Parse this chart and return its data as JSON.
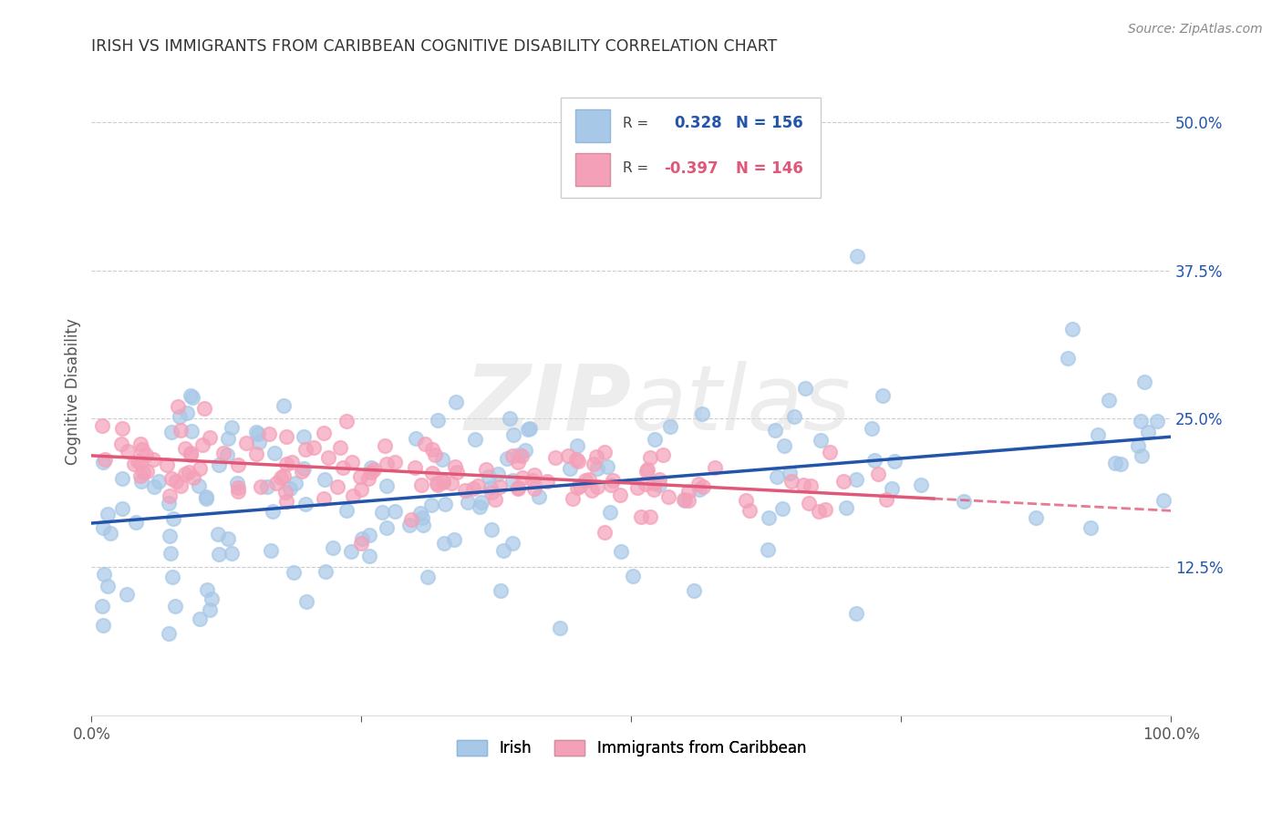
{
  "title": "IRISH VS IMMIGRANTS FROM CARIBBEAN COGNITIVE DISABILITY CORRELATION CHART",
  "source": "Source: ZipAtlas.com",
  "ylabel": "Cognitive Disability",
  "irish_color": "#a8c8e8",
  "caribbean_color": "#f4a0b8",
  "irish_line_color": "#2255aa",
  "caribbean_line_color": "#e05878",
  "R_irish": 0.328,
  "N_irish": 156,
  "R_caribbean": -0.397,
  "N_caribbean": 146,
  "legend_label_irish": "Irish",
  "legend_label_caribbean": "Immigrants from Caribbean",
  "watermark": "ZIPatlas",
  "background_color": "#ffffff",
  "ytick_color": "#2255aa",
  "grid_color": "#cccccc"
}
